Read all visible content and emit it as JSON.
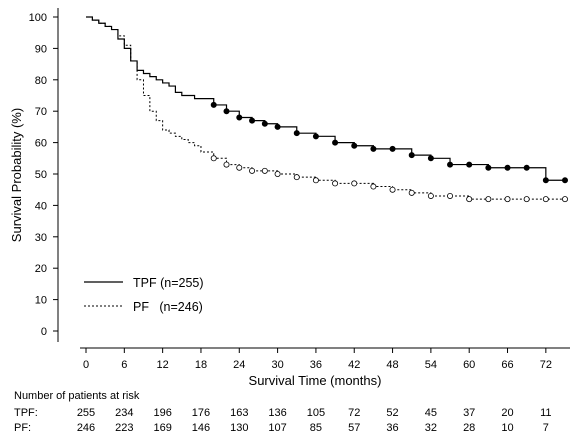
{
  "chart_data": {
    "type": "line",
    "title": "",
    "xlabel": "Survival Time (months)",
    "ylabel": "Survival Probability (%)",
    "xlim": [
      0,
      75
    ],
    "ylim": [
      0,
      100
    ],
    "x_ticks": [
      0,
      6,
      12,
      18,
      24,
      30,
      36,
      42,
      48,
      54,
      60,
      66,
      72
    ],
    "y_ticks": [
      0,
      10,
      20,
      30,
      40,
      50,
      60,
      70,
      80,
      90,
      100
    ],
    "grid": false,
    "legend_position": "bottom-left",
    "series": [
      {
        "name": "TPF (n=255)",
        "style": "solid",
        "censor_marker": "filled-circle",
        "x": [
          0,
          1,
          2,
          3,
          4,
          5,
          6,
          7,
          8,
          9,
          10,
          11,
          12,
          13,
          14,
          15,
          16,
          17,
          18,
          20,
          22,
          24,
          26,
          28,
          30,
          33,
          36,
          39,
          42,
          45,
          48,
          51,
          54,
          57,
          60,
          63,
          66,
          69,
          72,
          75
        ],
        "y": [
          100,
          99,
          98,
          97,
          96,
          93,
          90,
          86,
          83,
          82,
          81,
          80,
          79,
          78,
          76,
          75,
          75,
          74,
          74,
          72,
          70,
          68,
          67,
          66,
          65,
          63,
          62,
          60,
          59,
          58,
          58,
          56,
          55,
          53,
          53,
          52,
          52,
          52,
          48,
          48
        ]
      },
      {
        "name": "PF   (n=246)",
        "style": "dashed",
        "censor_marker": "open-circle",
        "x": [
          0,
          1,
          2,
          3,
          4,
          5,
          6,
          7,
          8,
          9,
          10,
          11,
          12,
          13,
          14,
          15,
          16,
          17,
          18,
          20,
          22,
          24,
          26,
          28,
          30,
          33,
          36,
          39,
          42,
          45,
          48,
          51,
          54,
          57,
          60,
          63,
          66,
          69,
          72,
          75
        ],
        "y": [
          100,
          99,
          98,
          97,
          96,
          94,
          91,
          86,
          80,
          75,
          70,
          67,
          64,
          63,
          62,
          61,
          60,
          59,
          57,
          55,
          53,
          52,
          51,
          51,
          50,
          49,
          48,
          47,
          47,
          46,
          45,
          44,
          43,
          43,
          42,
          42,
          42,
          42,
          42,
          42
        ]
      }
    ],
    "risk_table": {
      "title": "Number of patients at risk",
      "rows": [
        {
          "label": "TPF:",
          "values": [
            "255",
            "234",
            "196",
            "176",
            "163",
            "136",
            "105",
            "72",
            "52",
            "45",
            "37",
            "20",
            "11"
          ]
        },
        {
          "label": "PF:",
          "values": [
            "246",
            "223",
            "169",
            "146",
            "130",
            "107",
            "85",
            "57",
            "36",
            "32",
            "28",
            "10",
            "7"
          ]
        }
      ]
    }
  }
}
